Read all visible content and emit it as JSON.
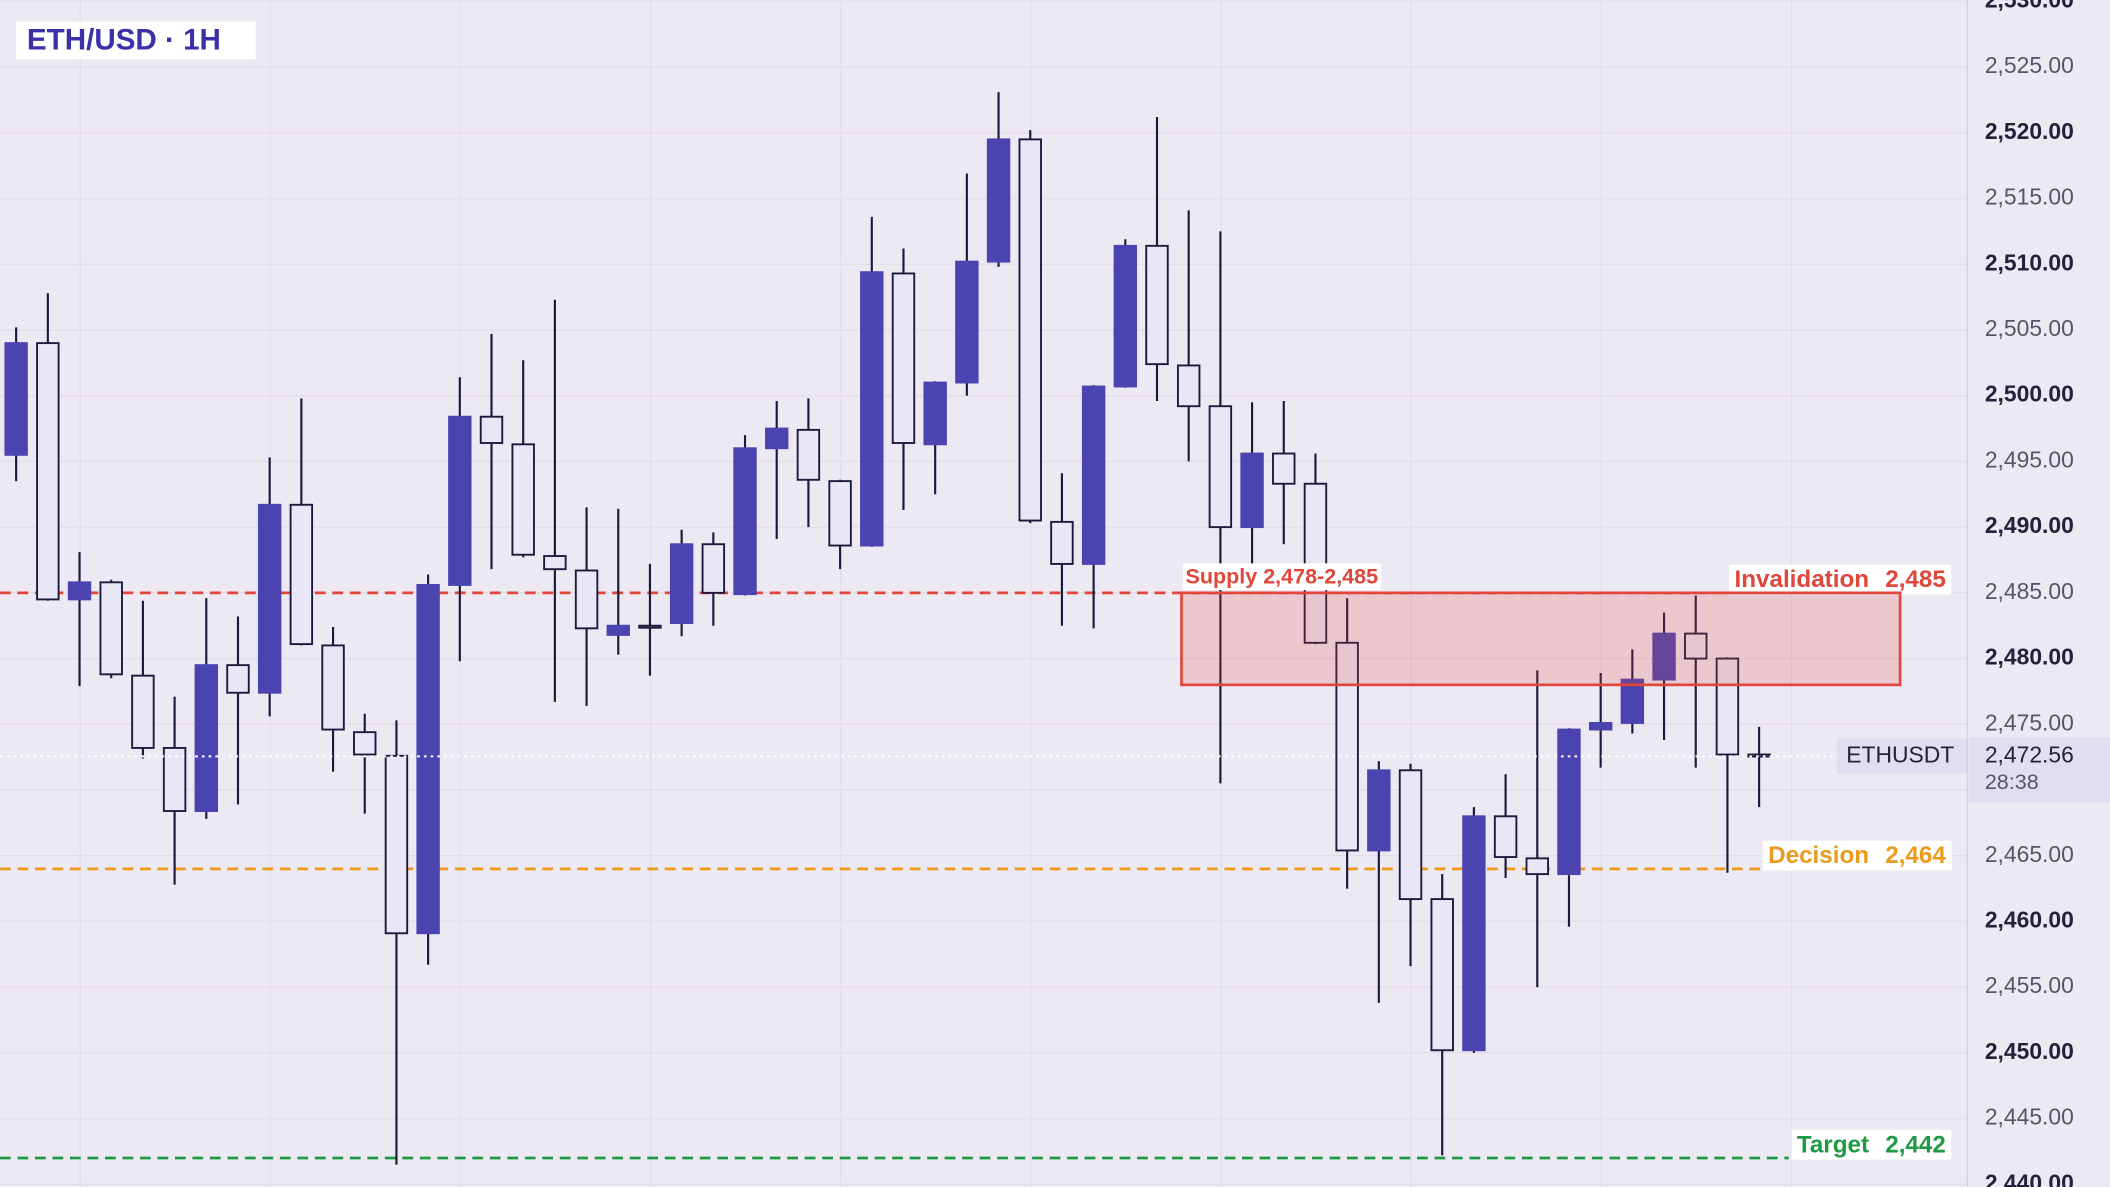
{
  "chart_data": {
    "type": "candlestick",
    "title": "ETH/USD · 1H",
    "open": [
      2495.5,
      2504.0,
      2484.5,
      2485.8,
      2478.7,
      2473.2,
      2468.4,
      2479.5,
      2477.4,
      2491.7,
      2481.0,
      2474.4,
      2472.6,
      2459.1,
      2485.6,
      2498.4,
      2496.3,
      2487.8,
      2486.7,
      2481.8,
      2482.5,
      2482.7,
      2488.7,
      2484.9,
      2496.0,
      2497.4,
      2493.5,
      2488.6,
      2509.3,
      2496.3,
      2501.0,
      2510.2,
      2519.5,
      2490.4,
      2487.2,
      2500.7,
      2511.4,
      2502.3,
      2499.2,
      2490.0,
      2495.6,
      2493.3,
      2481.2,
      2465.4,
      2471.5,
      2461.7,
      2450.2,
      2468.0,
      2464.8,
      2463.6,
      2474.6,
      2475.1,
      2478.4,
      2481.9,
      2480.0,
      2472.7
    ],
    "high": [
      2505.2,
      2507.8,
      2488.1,
      2486.0,
      2484.4,
      2477.1,
      2484.6,
      2483.2,
      2495.3,
      2499.8,
      2482.4,
      2475.8,
      2475.3,
      2486.4,
      2501.4,
      2504.7,
      2502.7,
      2507.3,
      2491.5,
      2491.4,
      2487.2,
      2489.8,
      2489.6,
      2497.0,
      2499.6,
      2499.8,
      2493.6,
      2513.6,
      2511.2,
      2501.1,
      2516.9,
      2523.1,
      2520.2,
      2494.1,
      2500.8,
      2511.9,
      2521.2,
      2514.1,
      2512.5,
      2499.5,
      2499.6,
      2495.6,
      2484.6,
      2472.2,
      2472.0,
      2463.6,
      2468.7,
      2471.2,
      2479.1,
      2474.7,
      2478.9,
      2480.7,
      2483.5,
      2484.8,
      2480.1,
      2474.8
    ],
    "low": [
      2493.5,
      2484.4,
      2477.9,
      2478.5,
      2472.4,
      2462.8,
      2467.8,
      2468.9,
      2475.6,
      2481.0,
      2471.4,
      2468.2,
      2441.5,
      2456.7,
      2479.8,
      2486.8,
      2487.7,
      2476.7,
      2476.4,
      2480.3,
      2478.7,
      2481.7,
      2482.5,
      2484.8,
      2489.1,
      2490.0,
      2486.8,
      2488.5,
      2491.3,
      2492.5,
      2500.0,
      2509.8,
      2490.3,
      2482.5,
      2482.3,
      2500.6,
      2499.6,
      2495.0,
      2470.5,
      2486.6,
      2488.7,
      2481.1,
      2462.5,
      2453.8,
      2456.6,
      2442.2,
      2450.0,
      2463.3,
      2455.0,
      2459.6,
      2471.7,
      2474.3,
      2473.8,
      2471.7,
      2463.7,
      2468.7
    ],
    "close": [
      2504.0,
      2484.5,
      2485.8,
      2478.8,
      2473.2,
      2468.4,
      2479.5,
      2477.4,
      2491.7,
      2481.1,
      2474.6,
      2472.7,
      2459.1,
      2485.6,
      2498.4,
      2496.4,
      2487.9,
      2486.8,
      2482.3,
      2482.5,
      2482.4,
      2488.7,
      2485.0,
      2496.0,
      2497.5,
      2493.6,
      2488.6,
      2509.4,
      2496.4,
      2501.0,
      2510.2,
      2519.5,
      2490.5,
      2487.2,
      2500.7,
      2511.4,
      2502.4,
      2499.2,
      2490.0,
      2495.6,
      2493.3,
      2481.2,
      2465.4,
      2471.5,
      2461.7,
      2450.2,
      2468.0,
      2464.9,
      2463.6,
      2474.6,
      2475.1,
      2478.4,
      2481.9,
      2480.0,
      2472.7,
      2472.56
    ],
    "up_color": "#4b44b0",
    "down_color": "#e9e6f6",
    "ylim": [
      2439.8,
      2530.1
    ],
    "yticks": [
      {
        "value": 2440,
        "label": "2,440.00"
      },
      {
        "value": 2445,
        "label": "2,445.00"
      },
      {
        "value": 2450,
        "label": "2,450.00"
      },
      {
        "value": 2455,
        "label": "2,455.00"
      },
      {
        "value": 2460,
        "label": "2,460.00"
      },
      {
        "value": 2465,
        "label": "2,465.00"
      },
      {
        "value": 2470,
        "label": "2,470.00"
      },
      {
        "value": 2475,
        "label": "2,475.00"
      },
      {
        "value": 2480,
        "label": "2,480.00"
      },
      {
        "value": 2485,
        "label": "2,485.00"
      },
      {
        "value": 2490,
        "label": "2,490.00"
      },
      {
        "value": 2495,
        "label": "2,495.00"
      },
      {
        "value": 2500,
        "label": "2,500.00"
      },
      {
        "value": 2505,
        "label": "2,505.00"
      },
      {
        "value": 2510,
        "label": "2,510.00"
      },
      {
        "value": 2515,
        "label": "2,515.00"
      },
      {
        "value": 2520,
        "label": "2,520.00"
      },
      {
        "value": 2525,
        "label": "2,525.00"
      },
      {
        "value": 2530,
        "label": "2,530.00"
      }
    ],
    "grid": true,
    "zone": {
      "label": "Supply 2,478-2,485",
      "low": 2478,
      "high": 2485,
      "color": "#e0463a"
    },
    "levels": [
      {
        "name": "Invalidation",
        "value": 2485,
        "label": "2,485",
        "color": "#e0463a"
      },
      {
        "name": "Decision",
        "value": 2464,
        "label": "2,464",
        "color": "#eb9a1c"
      },
      {
        "name": "Target",
        "value": 2442,
        "label": "2,442",
        "color": "#1e9a45"
      }
    ],
    "last_price": {
      "symbol": "ETHUSDT",
      "value": 2472.56,
      "label": "2,472.56",
      "countdown": "28:38"
    }
  }
}
